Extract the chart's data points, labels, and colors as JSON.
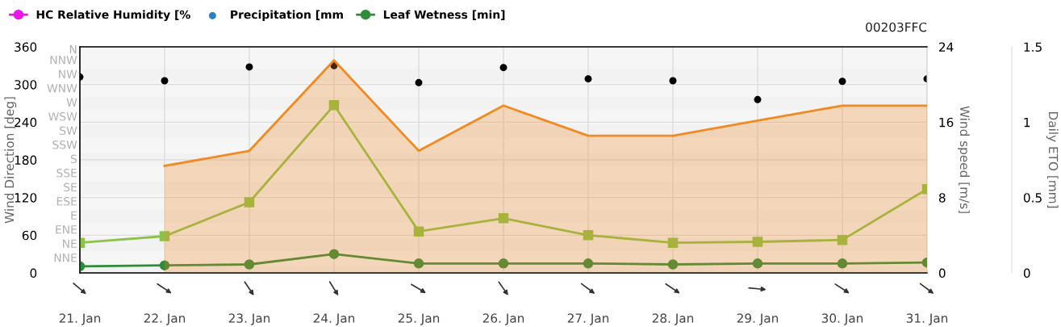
{
  "chart_data": {
    "type": "line",
    "categories": [
      "21. Jan",
      "22. Jan",
      "23. Jan",
      "24. Jan",
      "25. Jan",
      "26. Jan",
      "27. Jan",
      "28. Jan",
      "29. Jan",
      "30. Jan",
      "31. Jan"
    ],
    "ylabel": "Wind Direction [deg]",
    "y2label": "Wind speed [m/s]",
    "y3label": "Daily ETO [mm]",
    "ylim": [
      0,
      360
    ],
    "yticks": [
      0,
      60,
      120,
      180,
      240,
      300,
      360
    ],
    "bands": [
      {
        "axis": "y",
        "from": 0,
        "to": 11.25,
        "color": "#f2f2f2"
      },
      {
        "axis": "y",
        "from": 11.25,
        "to": 33.75,
        "label": "NNE",
        "color": "#f6f6f6"
      },
      {
        "axis": "y",
        "from": 33.75,
        "to": 56.25,
        "label": "NE",
        "color": "#f2f2f2"
      },
      {
        "axis": "y",
        "from": 56.25,
        "to": 78.75,
        "label": "ENE",
        "color": "#f6f6f6"
      },
      {
        "axis": "y",
        "from": 78.75,
        "to": 101.25,
        "label": "E",
        "color": "#f2f2f2"
      },
      {
        "axis": "y",
        "from": 101.25,
        "to": 123.75,
        "label": "ESE",
        "color": "#f6f6f6"
      },
      {
        "axis": "y",
        "from": 123.75,
        "to": 146.25,
        "label": "SE",
        "color": "#f2f2f2"
      },
      {
        "axis": "y",
        "from": 146.25,
        "to": 168.75,
        "label": "SSE",
        "color": "#f6f6f6"
      },
      {
        "axis": "y",
        "from": 168.75,
        "to": 191.25,
        "label": "S",
        "color": "#f2f2f2"
      },
      {
        "axis": "y",
        "from": 191.25,
        "to": 213.75,
        "label": "SSW",
        "color": "#f6f6f6"
      },
      {
        "axis": "y",
        "from": 213.75,
        "to": 236.25,
        "label": "SW",
        "color": "#f2f2f2"
      },
      {
        "axis": "y",
        "from": 236.25,
        "to": 258.75,
        "label": "WSW",
        "color": "#f6f6f6"
      },
      {
        "axis": "y",
        "from": 258.75,
        "to": 281.25,
        "label": "W",
        "color": "#f2f2f2"
      },
      {
        "axis": "y",
        "from": 281.25,
        "to": 303.75,
        "label": "WNW",
        "color": "#f6f6f6"
      },
      {
        "axis": "y",
        "from": 303.75,
        "to": 326.25,
        "label": "NW",
        "color": "#f2f2f2"
      },
      {
        "axis": "y",
        "from": 326.25,
        "to": 348.75,
        "label": "NNW",
        "color": "#f6f6f6"
      },
      {
        "axis": "y",
        "from": 348.75,
        "to": 360,
        "label": "N",
        "color": "#f6f6f6"
      }
    ],
    "y2lim": [
      0,
      24
    ],
    "y2ticks": [
      0,
      8,
      16,
      24
    ],
    "y3lim": [
      0,
      1.5
    ],
    "y3ticks": [
      0,
      0.5,
      1,
      1.5
    ],
    "grid": true,
    "legend": "top left",
    "annotations": [
      "00203FFC"
    ],
    "series": [
      {
        "name": "HC Relative Humidity [%",
        "color": "#e619e6",
        "marker": "circle",
        "values": [
          null,
          null,
          null,
          null,
          null,
          null,
          null,
          null,
          null,
          null,
          null
        ]
      },
      {
        "name": "Precipitation [mm",
        "color": "#2a7fc0",
        "type": "scatter",
        "marker": "circle",
        "values": [
          null,
          null,
          null,
          null,
          null,
          null,
          null,
          null,
          null,
          null,
          null
        ]
      },
      {
        "type": "area",
        "axis": "y3",
        "color": "#f08a24",
        "values": [
          null,
          0.71,
          0.81,
          1.41,
          0.81,
          1.11,
          0.91,
          0.91,
          1.01,
          1.11,
          1.11
        ]
      },
      {
        "axis": "y2",
        "color": "#8bc34a",
        "marker": "square",
        "values": [
          3.2,
          3.9,
          7.5,
          17.8,
          4.4,
          5.8,
          4.0,
          3.2,
          3.3,
          3.5,
          8.9
        ]
      },
      {
        "name": "Leaf Wetness [min]",
        "axis": "y2",
        "color": "#2e8b3a",
        "marker": "circle",
        "values": [
          0.7,
          0.8,
          0.9,
          2.0,
          1.0,
          1.0,
          1.0,
          0.9,
          1.0,
          1.0,
          1.1
        ]
      },
      {
        "type": "scatter",
        "color": "#000000",
        "marker": "circle",
        "values": [
          312,
          306,
          328,
          330,
          303,
          327,
          309,
          306,
          276,
          305,
          309
        ]
      }
    ]
  }
}
